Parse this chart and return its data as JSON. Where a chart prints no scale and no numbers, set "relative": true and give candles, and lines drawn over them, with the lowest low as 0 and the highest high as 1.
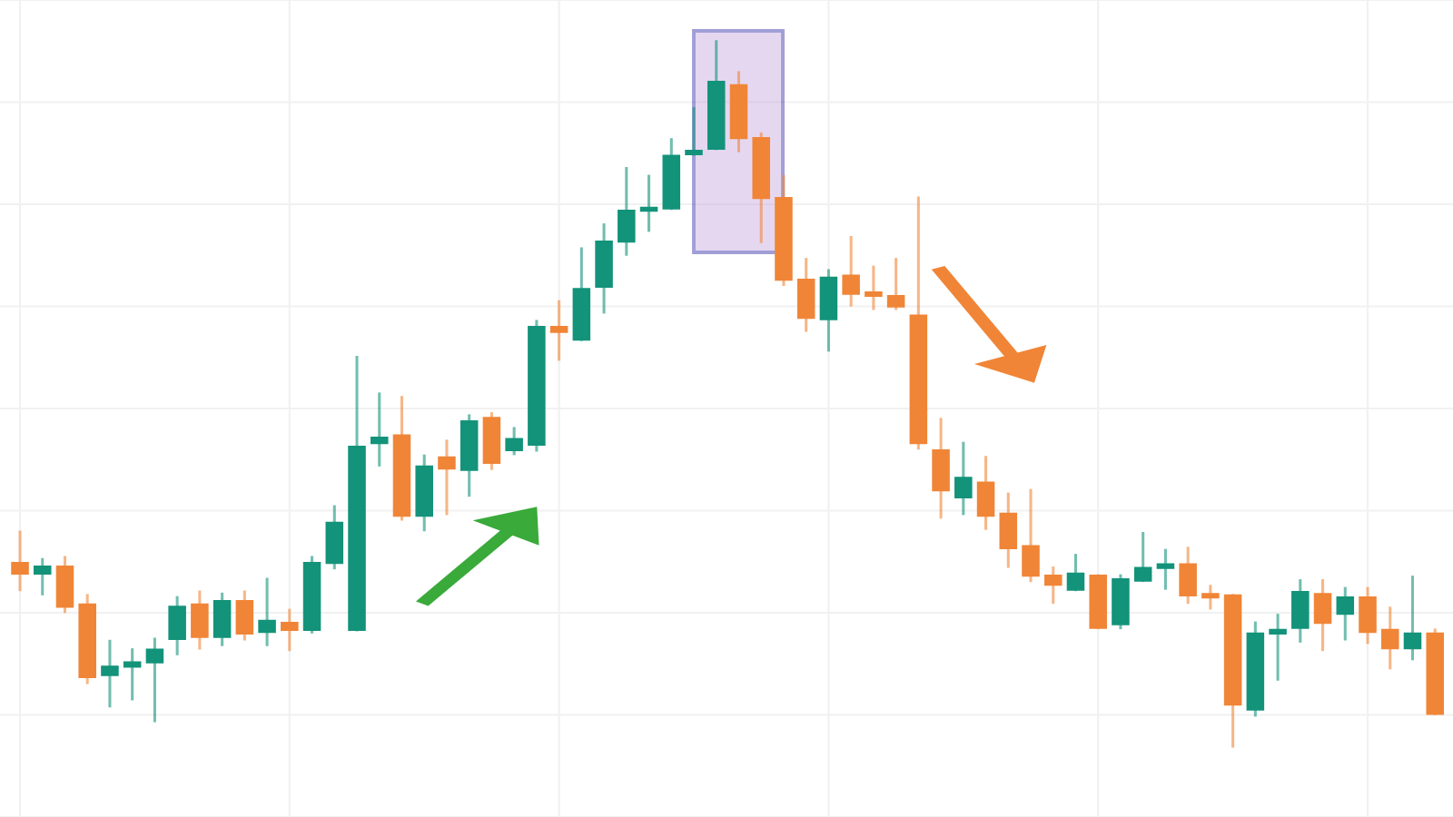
{
  "chart_data": {
    "type": "candlestick",
    "relative": true,
    "grid": true,
    "categories": [
      null,
      null,
      null,
      null,
      null,
      null,
      null,
      null,
      null,
      null,
      null,
      null,
      null,
      null,
      null,
      null,
      null,
      null,
      null,
      null,
      null,
      null,
      null,
      null,
      null,
      null,
      null,
      null,
      null,
      null,
      null,
      null,
      null,
      null,
      null,
      null,
      null,
      null,
      null,
      null,
      null,
      null,
      null,
      null,
      null,
      null,
      null,
      null,
      null,
      null,
      null,
      null,
      null,
      null,
      null,
      null,
      null,
      null,
      null,
      null,
      null,
      null,
      null,
      null
    ],
    "ohlc": [
      [
        0.26,
        0.304,
        0.222,
        0.245
      ],
      [
        0.245,
        0.265,
        0.216,
        0.255
      ],
      [
        0.255,
        0.268,
        0.191,
        0.198
      ],
      [
        0.201,
        0.214,
        0.09,
        0.098
      ],
      [
        0.101,
        0.149,
        0.057,
        0.113
      ],
      [
        0.113,
        0.137,
        0.067,
        0.119
      ],
      [
        0.119,
        0.152,
        0.036,
        0.137
      ],
      [
        0.152,
        0.211,
        0.131,
        0.198
      ],
      [
        0.201,
        0.219,
        0.139,
        0.155
      ],
      [
        0.155,
        0.216,
        0.144,
        0.206
      ],
      [
        0.206,
        0.219,
        0.152,
        0.16
      ],
      [
        0.162,
        0.237,
        0.144,
        0.178
      ],
      [
        0.175,
        0.193,
        0.137,
        0.165
      ],
      [
        0.165,
        0.268,
        0.162,
        0.26
      ],
      [
        0.26,
        0.34,
        0.253,
        0.317
      ],
      [
        0.165,
        0.552,
        0.165,
        0.425
      ],
      [
        0.43,
        0.5,
        0.399,
        0.438
      ],
      [
        0.441,
        0.495,
        0.322,
        0.327
      ],
      [
        0.327,
        0.412,
        0.307,
        0.397
      ],
      [
        0.41,
        0.433,
        0.33,
        0.394
      ],
      [
        0.392,
        0.469,
        0.356,
        0.461
      ],
      [
        0.466,
        0.472,
        0.394,
        0.402
      ],
      [
        0.42,
        0.451,
        0.415,
        0.436
      ],
      [
        0.428,
        0.603,
        0.42,
        0.595
      ],
      [
        0.595,
        0.631,
        0.549,
        0.588
      ],
      [
        0.577,
        0.706,
        0.577,
        0.649
      ],
      [
        0.652,
        0.74,
        0.616,
        0.716
      ],
      [
        0.716,
        0.82,
        0.698,
        0.76
      ],
      [
        0.76,
        0.809,
        0.732,
        0.763
      ],
      [
        0.763,
        0.861,
        0.763,
        0.838
      ],
      [
        0.84,
        0.905,
        0.84,
        0.845
      ],
      [
        0.848,
        1.0,
        0.848,
        0.943
      ],
      [
        0.938,
        0.956,
        0.845,
        0.863
      ],
      [
        0.863,
        0.869,
        0.716,
        0.778
      ],
      [
        0.778,
        0.809,
        0.655,
        0.662
      ],
      [
        0.662,
        0.691,
        0.59,
        0.608
      ],
      [
        0.606,
        0.675,
        0.562,
        0.665
      ],
      [
        0.668,
        0.722,
        0.626,
        0.642
      ],
      [
        0.644,
        0.68,
        0.621,
        0.639
      ],
      [
        0.639,
        0.691,
        0.621,
        0.624
      ],
      [
        0.611,
        0.778,
        0.423,
        0.43
      ],
      [
        0.42,
        0.464,
        0.325,
        0.363
      ],
      [
        0.353,
        0.43,
        0.33,
        0.381
      ],
      [
        0.374,
        0.41,
        0.309,
        0.327
      ],
      [
        0.33,
        0.358,
        0.255,
        0.281
      ],
      [
        0.284,
        0.363,
        0.235,
        0.242
      ],
      [
        0.242,
        0.253,
        0.204,
        0.229
      ],
      [
        0.222,
        0.271,
        0.222,
        0.245
      ],
      [
        0.242,
        0.242,
        0.168,
        0.168
      ],
      [
        0.173,
        0.242,
        0.168,
        0.237
      ],
      [
        0.235,
        0.302,
        0.235,
        0.253
      ],
      [
        0.253,
        0.278,
        0.224,
        0.258
      ],
      [
        0.258,
        0.281,
        0.204,
        0.214
      ],
      [
        0.216,
        0.227,
        0.196,
        0.211
      ],
      [
        0.214,
        0.214,
        0.0,
        0.059
      ],
      [
        0.052,
        0.175,
        0.044,
        0.16
      ],
      [
        0.16,
        0.186,
        0.095,
        0.165
      ],
      [
        0.168,
        0.235,
        0.149,
        0.219
      ],
      [
        0.216,
        0.235,
        0.137,
        0.175
      ],
      [
        0.188,
        0.224,
        0.152,
        0.211
      ],
      [
        0.211,
        0.224,
        0.147,
        0.162
      ],
      [
        0.165,
        0.196,
        0.111,
        0.139
      ],
      [
        0.139,
        0.24,
        0.124,
        0.16
      ],
      [
        0.16,
        0.165,
        0.046,
        0.046
      ]
    ],
    "colors": [
      "#f08537",
      "#13937a",
      "#f08537",
      "#f08537",
      "#13937a",
      "#13937a",
      "#13937a",
      "#13937a",
      "#f08537",
      "#13937a",
      "#f08537",
      "#13937a",
      "#f08537",
      "#13937a",
      "#13937a",
      "#13937a",
      "#13937a",
      "#f08537",
      "#13937a",
      "#f08537",
      "#13937a",
      "#f08537",
      "#13937a",
      "#13937a",
      "#f08537",
      "#13937a",
      "#13937a",
      "#13937a",
      "#13937a",
      "#13937a",
      "#13937a",
      "#13937a",
      "#f08537",
      "#f08537",
      "#f08537",
      "#f08537",
      "#13937a",
      "#f08537",
      "#f08537",
      "#f08537",
      "#f08537",
      "#f08537",
      "#13937a",
      "#f08537",
      "#f08537",
      "#f08537",
      "#f08537",
      "#13937a",
      "#f08537",
      "#13937a",
      "#13937a",
      "#13937a",
      "#f08537",
      "#f08537",
      "#f08537",
      "#13937a",
      "#13937a",
      "#13937a",
      "#f08537",
      "#13937a",
      "#f08537",
      "#f08537",
      "#13937a",
      "#f08537"
    ]
  }
}
